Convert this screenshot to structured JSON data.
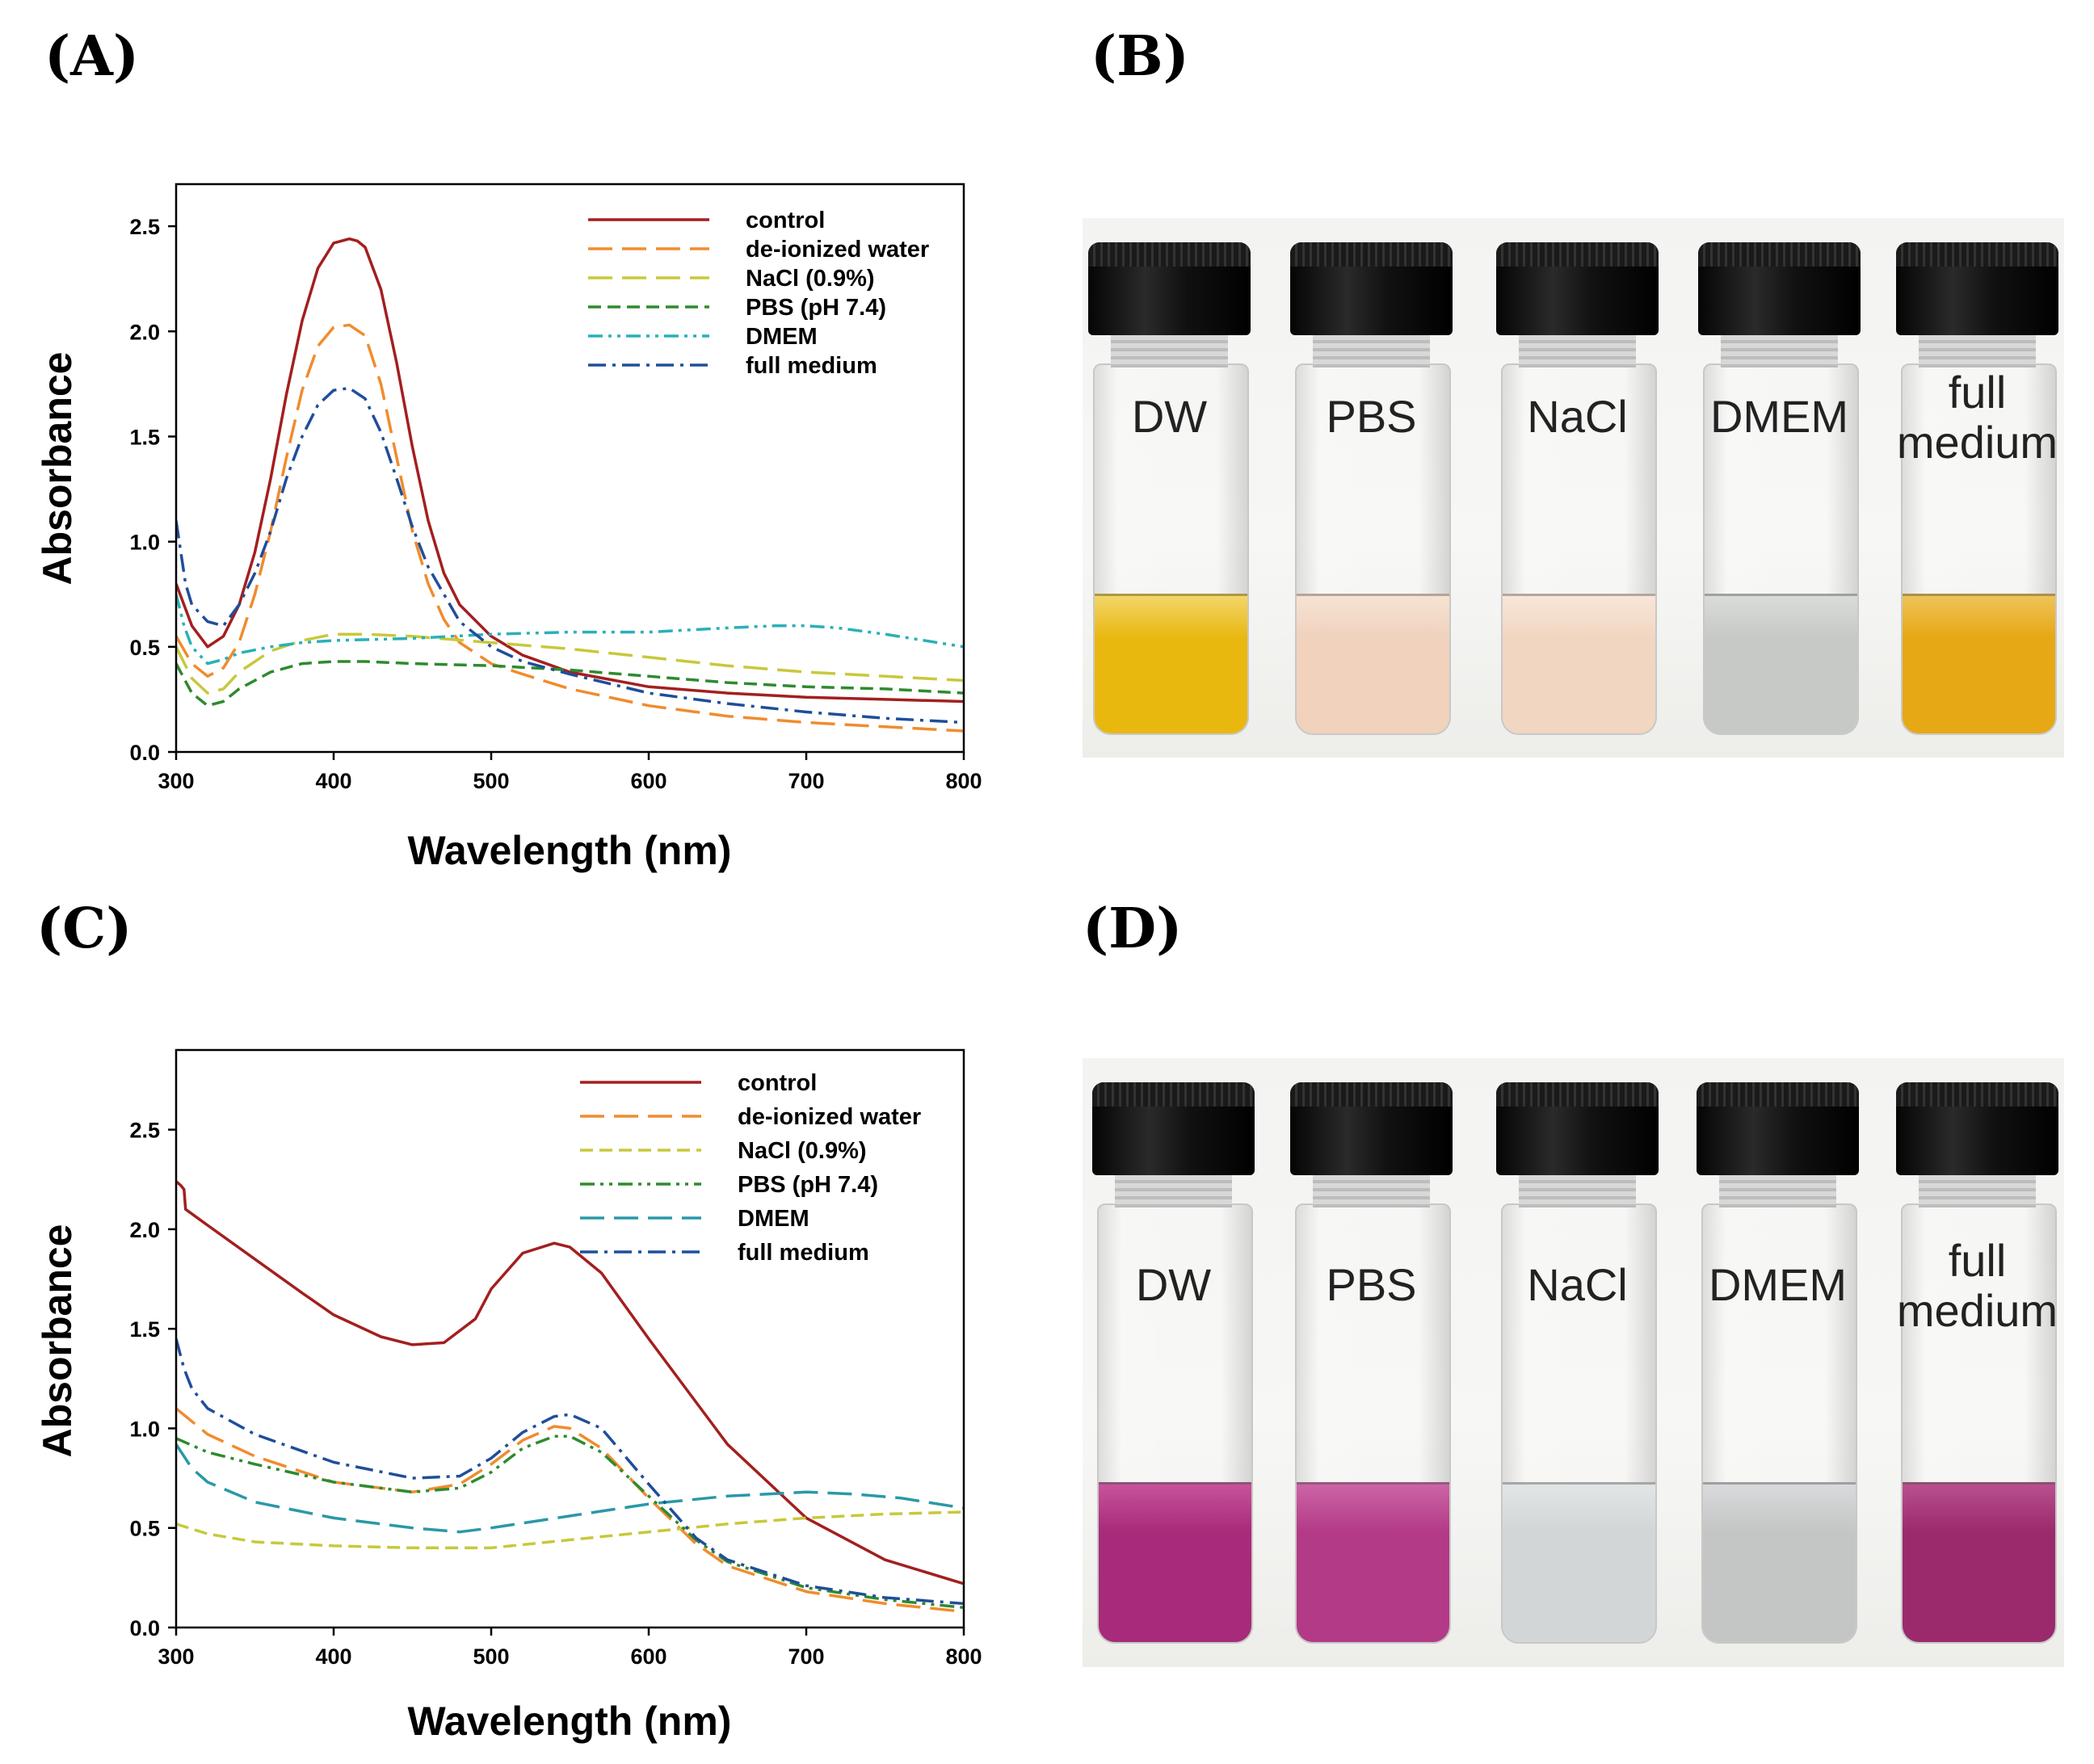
{
  "panels": {
    "a": "(A)",
    "b": "(B)",
    "c": "(C)",
    "d": "(D)"
  },
  "chart_data": [
    {
      "type": "line",
      "panel": "(A)",
      "xlabel": "Wavelength (nm)",
      "ylabel": "Absorbance",
      "xlim": [
        300,
        800
      ],
      "ylim": [
        0,
        2.7
      ],
      "xticks": [
        300,
        400,
        500,
        600,
        700,
        800
      ],
      "yticks": [
        0.0,
        0.5,
        1.0,
        1.5,
        2.0,
        2.5
      ],
      "ytick_labels": [
        "0.0",
        "0.5",
        "1.0",
        "1.5",
        "2.0",
        "2.5"
      ],
      "legend_position": "top-right",
      "series": [
        {
          "name": "control",
          "color": "#a31f1f",
          "dash": "solid",
          "x": [
            300,
            310,
            320,
            330,
            340,
            350,
            360,
            370,
            380,
            390,
            400,
            410,
            415,
            420,
            430,
            440,
            450,
            460,
            470,
            480,
            500,
            520,
            550,
            600,
            650,
            700,
            750,
            800
          ],
          "y": [
            0.8,
            0.6,
            0.5,
            0.55,
            0.7,
            0.95,
            1.3,
            1.7,
            2.05,
            2.3,
            2.42,
            2.44,
            2.43,
            2.4,
            2.2,
            1.85,
            1.45,
            1.1,
            0.85,
            0.7,
            0.55,
            0.46,
            0.38,
            0.31,
            0.28,
            0.26,
            0.25,
            0.24
          ]
        },
        {
          "name": "de-ionized water",
          "color": "#f08c2e",
          "dash": "long",
          "x": [
            300,
            310,
            320,
            330,
            340,
            350,
            360,
            370,
            380,
            390,
            400,
            410,
            420,
            430,
            440,
            450,
            460,
            470,
            480,
            500,
            520,
            550,
            600,
            650,
            700,
            750,
            800
          ],
          "y": [
            0.55,
            0.42,
            0.36,
            0.4,
            0.52,
            0.75,
            1.05,
            1.4,
            1.72,
            1.93,
            2.02,
            2.03,
            1.98,
            1.75,
            1.4,
            1.05,
            0.8,
            0.63,
            0.52,
            0.42,
            0.37,
            0.3,
            0.22,
            0.17,
            0.14,
            0.12,
            0.1
          ]
        },
        {
          "name": "NaCl (0.9%)",
          "color": "#c8c83c",
          "dash": "long",
          "x": [
            300,
            310,
            320,
            330,
            340,
            360,
            380,
            400,
            420,
            450,
            500,
            550,
            600,
            650,
            700,
            750,
            800
          ],
          "y": [
            0.5,
            0.35,
            0.28,
            0.3,
            0.38,
            0.48,
            0.53,
            0.56,
            0.56,
            0.55,
            0.52,
            0.49,
            0.45,
            0.41,
            0.38,
            0.36,
            0.34
          ]
        },
        {
          "name": "PBS (pH 7.4)",
          "color": "#2e8b2e",
          "dash": "medium",
          "x": [
            300,
            310,
            320,
            330,
            340,
            360,
            380,
            400,
            420,
            450,
            500,
            550,
            600,
            650,
            700,
            750,
            800
          ],
          "y": [
            0.42,
            0.28,
            0.22,
            0.24,
            0.3,
            0.38,
            0.42,
            0.43,
            0.43,
            0.42,
            0.41,
            0.39,
            0.36,
            0.33,
            0.31,
            0.3,
            0.28
          ]
        },
        {
          "name": "DMEM",
          "color": "#2ab0b8",
          "dash": "dash-dot-dot",
          "x": [
            300,
            305,
            310,
            320,
            330,
            340,
            360,
            380,
            400,
            450,
            500,
            550,
            600,
            650,
            680,
            700,
            720,
            750,
            800
          ],
          "y": [
            0.75,
            0.6,
            0.5,
            0.42,
            0.44,
            0.47,
            0.5,
            0.52,
            0.53,
            0.54,
            0.56,
            0.57,
            0.57,
            0.59,
            0.6,
            0.6,
            0.59,
            0.56,
            0.5
          ]
        },
        {
          "name": "full medium",
          "color": "#1f4e9a",
          "dash": "dash-dot",
          "x": [
            300,
            303,
            306,
            310,
            320,
            330,
            340,
            350,
            360,
            370,
            380,
            390,
            400,
            410,
            420,
            430,
            440,
            450,
            460,
            480,
            500,
            520,
            550,
            600,
            650,
            700,
            750,
            800
          ],
          "y": [
            1.1,
            0.95,
            0.8,
            0.7,
            0.62,
            0.6,
            0.7,
            0.85,
            1.05,
            1.3,
            1.5,
            1.65,
            1.72,
            1.73,
            1.68,
            1.52,
            1.3,
            1.07,
            0.88,
            0.62,
            0.5,
            0.43,
            0.37,
            0.28,
            0.23,
            0.19,
            0.16,
            0.14
          ]
        }
      ]
    },
    {
      "type": "line",
      "panel": "(C)",
      "xlabel": "Wavelength (nm)",
      "ylabel": "Absorbance",
      "xlim": [
        300,
        800
      ],
      "ylim": [
        0,
        2.9
      ],
      "xticks": [
        300,
        400,
        500,
        600,
        700,
        800
      ],
      "yticks": [
        0.0,
        0.5,
        1.0,
        1.5,
        2.0,
        2.5
      ],
      "ytick_labels": [
        "0.0",
        "0.5",
        "1.0",
        "1.5",
        "2.0",
        "2.5"
      ],
      "legend_position": "top-right",
      "series": [
        {
          "name": "control",
          "color": "#a31f1f",
          "dash": "solid",
          "x": [
            300,
            303,
            305,
            306,
            320,
            350,
            380,
            400,
            430,
            450,
            470,
            490,
            500,
            520,
            540,
            550,
            570,
            600,
            650,
            700,
            750,
            800
          ],
          "y": [
            2.24,
            2.22,
            2.2,
            2.1,
            2.02,
            1.85,
            1.68,
            1.57,
            1.46,
            1.42,
            1.43,
            1.55,
            1.7,
            1.88,
            1.93,
            1.91,
            1.78,
            1.45,
            0.92,
            0.55,
            0.34,
            0.22
          ]
        },
        {
          "name": "de-ionized water",
          "color": "#f08c2e",
          "dash": "long",
          "x": [
            300,
            320,
            350,
            400,
            450,
            480,
            500,
            520,
            540,
            550,
            570,
            600,
            630,
            650,
            700,
            750,
            800
          ],
          "y": [
            1.1,
            0.97,
            0.86,
            0.73,
            0.68,
            0.72,
            0.82,
            0.94,
            1.01,
            1.0,
            0.9,
            0.65,
            0.42,
            0.31,
            0.18,
            0.12,
            0.08
          ]
        },
        {
          "name": "NaCl (0.9%)",
          "color": "#c8c83c",
          "dash": "medium",
          "x": [
            300,
            320,
            350,
            400,
            450,
            500,
            550,
            600,
            650,
            700,
            750,
            800
          ],
          "y": [
            0.52,
            0.47,
            0.43,
            0.41,
            0.4,
            0.4,
            0.44,
            0.48,
            0.52,
            0.55,
            0.57,
            0.58
          ]
        },
        {
          "name": "PBS (pH 7.4)",
          "color": "#2e8b2e",
          "dash": "dash-dot-dot",
          "x": [
            300,
            320,
            350,
            400,
            450,
            480,
            500,
            520,
            540,
            550,
            570,
            600,
            630,
            650,
            700,
            750,
            800
          ],
          "y": [
            0.95,
            0.88,
            0.82,
            0.73,
            0.68,
            0.7,
            0.78,
            0.9,
            0.96,
            0.96,
            0.88,
            0.66,
            0.44,
            0.33,
            0.2,
            0.14,
            0.1
          ]
        },
        {
          "name": "DMEM",
          "color": "#2a98a8",
          "dash": "long",
          "x": [
            300,
            310,
            320,
            350,
            400,
            450,
            480,
            500,
            550,
            600,
            650,
            700,
            730,
            760,
            800
          ],
          "y": [
            0.92,
            0.8,
            0.73,
            0.63,
            0.55,
            0.5,
            0.48,
            0.5,
            0.56,
            0.62,
            0.66,
            0.68,
            0.67,
            0.65,
            0.6
          ]
        },
        {
          "name": "full medium",
          "color": "#1f4e9a",
          "dash": "dash-dot",
          "x": [
            300,
            305,
            310,
            320,
            350,
            400,
            450,
            480,
            500,
            520,
            540,
            550,
            570,
            600,
            630,
            650,
            700,
            750,
            800
          ],
          "y": [
            1.45,
            1.3,
            1.2,
            1.1,
            0.97,
            0.83,
            0.75,
            0.76,
            0.85,
            0.98,
            1.06,
            1.07,
            1.0,
            0.72,
            0.45,
            0.34,
            0.21,
            0.15,
            0.12
          ]
        }
      ]
    }
  ],
  "photos": [
    {
      "panel": "(B)",
      "vials": [
        {
          "label": "DW",
          "liquid_color": "#e9b80f",
          "liquid_top": "#f3d66a"
        },
        {
          "label": "PBS",
          "liquid_color": "#f0d2bd",
          "liquid_top": "#f7e2d3"
        },
        {
          "label": "NaCl",
          "liquid_color": "#f1d6c2",
          "liquid_top": "#f8e6d8"
        },
        {
          "label": "DMEM",
          "liquid_color": "#c7c9c6",
          "liquid_top": "#dadcd9"
        },
        {
          "label": "full medium",
          "liquid_color": "#e6a814",
          "liquid_top": "#efc35a"
        }
      ]
    },
    {
      "panel": "(D)",
      "vials": [
        {
          "label": "DW",
          "liquid_color": "#a82a7a",
          "liquid_top": "#c7539a"
        },
        {
          "label": "PBS",
          "liquid_color": "#b33a86",
          "liquid_top": "#cc64a6"
        },
        {
          "label": "NaCl",
          "liquid_color": "#d2d6d6",
          "liquid_top": "#e2e5e5"
        },
        {
          "label": "DMEM",
          "liquid_color": "#c4c6c6",
          "liquid_top": "#d8dadb"
        },
        {
          "label": "full medium",
          "liquid_color": "#9a2a6c",
          "liquid_top": "#b9508d"
        }
      ]
    }
  ]
}
